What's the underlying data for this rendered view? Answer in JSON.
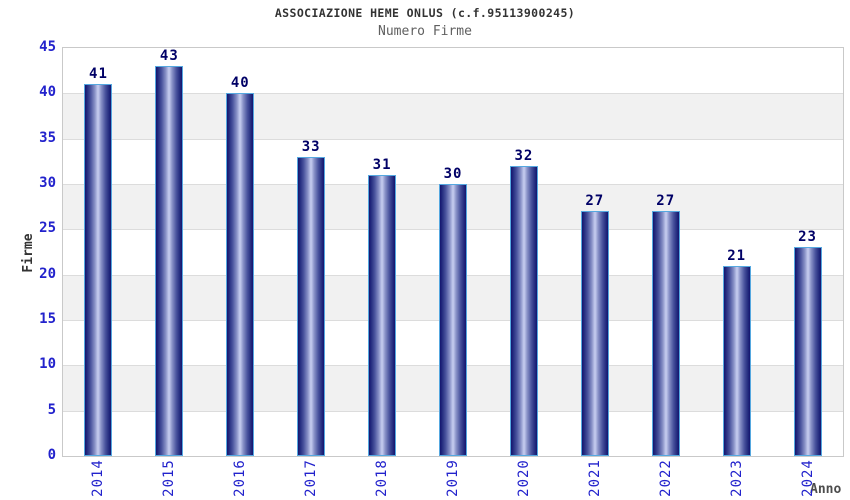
{
  "header": {
    "title": "ASSOCIAZIONE HEME ONLUS (c.f.95113900245)",
    "subtitle": "Numero Firme"
  },
  "chart_data": {
    "type": "bar",
    "title": "ASSOCIAZIONE HEME ONLUS (c.f.95113900245)",
    "subtitle": "Numero Firme",
    "categories": [
      "2014",
      "2015",
      "2016",
      "2017",
      "2018",
      "2019",
      "2020",
      "2021",
      "2022",
      "2023",
      "2024"
    ],
    "values": [
      41,
      43,
      40,
      33,
      31,
      30,
      32,
      27,
      27,
      21,
      23
    ],
    "xlabel": "Anno",
    "ylabel": "Firme",
    "ylim": [
      0,
      45
    ],
    "ytick_step": 5,
    "yticks": [
      0,
      5,
      10,
      15,
      20,
      25,
      30,
      35,
      40,
      45
    ],
    "grid": true,
    "legend_position": "none",
    "value_labels_shown": true
  },
  "colors": {
    "band_white": "#ffffff",
    "band_gray": "#f1f1f1",
    "gridline": "#dcdcdc",
    "plot_border": "#c9c9c9",
    "bar_edge_dark": "#14146e",
    "bar_center_light": "#c6ccee",
    "bar_border": "#55a8e0",
    "tick_label_blue": "#2222cc",
    "value_label_navy": "#000066",
    "title_gray": "#333333",
    "subtitle_gray": "#606060",
    "axis_title_gray": "#4d4d4d"
  }
}
